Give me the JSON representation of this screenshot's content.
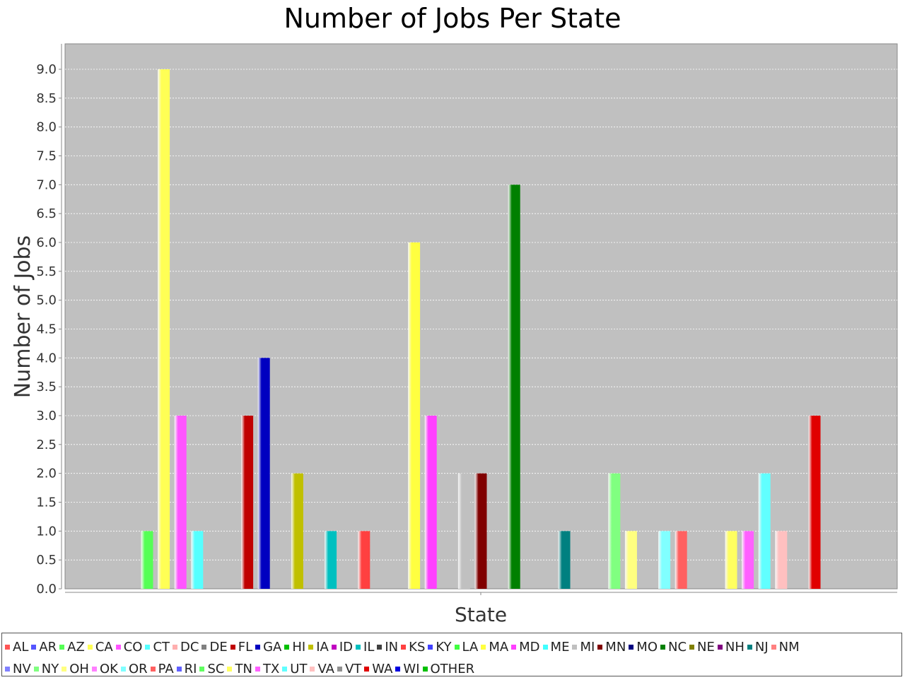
{
  "chart_data": {
    "type": "bar",
    "title": "Number of Jobs Per State",
    "xlabel": "State",
    "ylabel": "Number of Jobs",
    "ylim": [
      0,
      9.0
    ],
    "yticks": [
      "0.0",
      "0.5",
      "1.0",
      "1.5",
      "2.0",
      "2.5",
      "3.0",
      "3.5",
      "4.0",
      "4.5",
      "5.0",
      "5.5",
      "6.0",
      "6.5",
      "7.0",
      "7.5",
      "8.0",
      "8.5",
      "9.0"
    ],
    "grid": true,
    "legend_position": "bottom",
    "series": [
      {
        "name": "AL",
        "color": "#ff5555",
        "value": 0
      },
      {
        "name": "AR",
        "color": "#5555ff",
        "value": 0
      },
      {
        "name": "AZ",
        "color": "#55ff55",
        "value": 1
      },
      {
        "name": "CA",
        "color": "#ffff55",
        "value": 9
      },
      {
        "name": "CO",
        "color": "#ff55ff",
        "value": 3
      },
      {
        "name": "CT",
        "color": "#55ffff",
        "value": 1
      },
      {
        "name": "DC",
        "color": "#ffafaf",
        "value": 0
      },
      {
        "name": "DE",
        "color": "#808080",
        "value": 0
      },
      {
        "name": "FL",
        "color": "#c00000",
        "value": 3
      },
      {
        "name": "GA",
        "color": "#0000c0",
        "value": 4
      },
      {
        "name": "HI",
        "color": "#00c000",
        "value": 0
      },
      {
        "name": "IA",
        "color": "#c0c000",
        "value": 2
      },
      {
        "name": "ID",
        "color": "#c000c0",
        "value": 0
      },
      {
        "name": "IL",
        "color": "#00c0c0",
        "value": 1
      },
      {
        "name": "IN",
        "color": "#404040",
        "value": 0
      },
      {
        "name": "KS",
        "color": "#ff4040",
        "value": 1
      },
      {
        "name": "KY",
        "color": "#4040ff",
        "value": 0
      },
      {
        "name": "LA",
        "color": "#40ff40",
        "value": 0
      },
      {
        "name": "MA",
        "color": "#ffff40",
        "value": 6
      },
      {
        "name": "MD",
        "color": "#ff40ff",
        "value": 3
      },
      {
        "name": "ME",
        "color": "#40ffff",
        "value": 0
      },
      {
        "name": "MI",
        "color": "#c0c0c0",
        "value": 2
      },
      {
        "name": "MN",
        "color": "#800000",
        "value": 2
      },
      {
        "name": "MO",
        "color": "#000080",
        "value": 0
      },
      {
        "name": "NC",
        "color": "#008000",
        "value": 7
      },
      {
        "name": "NE",
        "color": "#808000",
        "value": 0
      },
      {
        "name": "NH",
        "color": "#800080",
        "value": 0
      },
      {
        "name": "NJ",
        "color": "#008080",
        "value": 1
      },
      {
        "name": "NM",
        "color": "#ff8080",
        "value": 0
      },
      {
        "name": "NV",
        "color": "#8080ff",
        "value": 0
      },
      {
        "name": "NY",
        "color": "#80ff80",
        "value": 2
      },
      {
        "name": "OH",
        "color": "#ffff80",
        "value": 1
      },
      {
        "name": "OK",
        "color": "#ff80ff",
        "value": 0
      },
      {
        "name": "OR",
        "color": "#80ffff",
        "value": 1
      },
      {
        "name": "PA",
        "color": "#ff6060",
        "value": 1
      },
      {
        "name": "RI",
        "color": "#6060ff",
        "value": 0
      },
      {
        "name": "SC",
        "color": "#60ff60",
        "value": 0
      },
      {
        "name": "TN",
        "color": "#ffff60",
        "value": 1
      },
      {
        "name": "TX",
        "color": "#ff60ff",
        "value": 1
      },
      {
        "name": "UT",
        "color": "#60ffff",
        "value": 2
      },
      {
        "name": "VA",
        "color": "#ffc0c0",
        "value": 1
      },
      {
        "name": "VT",
        "color": "#909090",
        "value": 0
      },
      {
        "name": "WA",
        "color": "#e00000",
        "value": 3
      },
      {
        "name": "WI",
        "color": "#0000e0",
        "value": 0
      },
      {
        "name": "OTHER",
        "color": "#00c000",
        "value": 0
      }
    ]
  }
}
